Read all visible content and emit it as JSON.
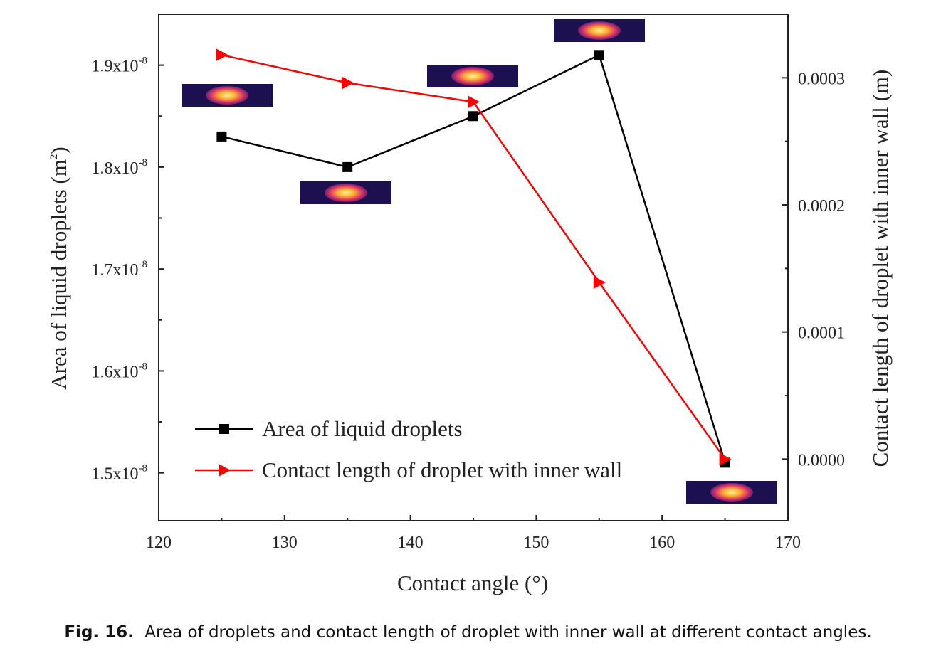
{
  "chart_data": {
    "type": "line",
    "x_axis": {
      "label": "Contact angle (°)",
      "range": [
        120,
        170
      ],
      "ticks": [
        120,
        130,
        140,
        150,
        160,
        170
      ],
      "tick_labels": [
        "120",
        "130",
        "140",
        "150",
        "160",
        "170"
      ]
    },
    "y_axis_left": {
      "label": "Area of liquid droplets (m²)",
      "label_base": "Area of liquid droplets (m",
      "label_sup": "2",
      "label_end": ")",
      "range": [
        1.453e-08,
        1.95e-08
      ],
      "ticks": [
        1.5e-08,
        1.6e-08,
        1.7e-08,
        1.8e-08,
        1.9e-08
      ],
      "tick_labels": [
        {
          "base": "1.5x10",
          "exp": "-8"
        },
        {
          "base": "1.6x10",
          "exp": "-8"
        },
        {
          "base": "1.7x10",
          "exp": "-8"
        },
        {
          "base": "1.8x10",
          "exp": "-8"
        },
        {
          "base": "1.9x10",
          "exp": "-8"
        }
      ]
    },
    "y_axis_right": {
      "label": "Contact length of droplet with inner wall (m)",
      "range": [
        -4.85e-05,
        0.00035
      ],
      "ticks": [
        0.0,
        0.0001,
        0.0002,
        0.0003
      ],
      "tick_labels": [
        "0.0000",
        "0.0001",
        "0.0002",
        "0.0003"
      ]
    },
    "series": [
      {
        "name": "Area of liquid droplets",
        "axis": "left",
        "color": "#000000",
        "marker": "square",
        "x": [
          125,
          135,
          145,
          155,
          165
        ],
        "y": [
          1.83e-08,
          1.8e-08,
          1.85e-08,
          1.91e-08,
          1.51e-08
        ]
      },
      {
        "name": "Contact length of droplet with inner wall",
        "axis": "right",
        "color": "#ff0000",
        "marker": "triangle-right",
        "x": [
          125,
          135,
          145,
          155,
          165
        ],
        "y": [
          0.000318,
          0.000296,
          0.000281,
          0.000139,
          0.0
        ]
      }
    ],
    "legend": {
      "placement": "bottom-left"
    },
    "grid": false,
    "inset_images": [
      {
        "x": 125,
        "description": "droplet contour thumbnail"
      },
      {
        "x": 135,
        "description": "droplet contour thumbnail"
      },
      {
        "x": 145,
        "description": "droplet contour thumbnail"
      },
      {
        "x": 155,
        "description": "droplet contour thumbnail"
      },
      {
        "x": 165,
        "description": "droplet contour thumbnail"
      }
    ]
  },
  "caption": {
    "label": "Fig. 16.",
    "text": "Area of droplets and contact length of droplet with inner wall at different contact angles."
  }
}
